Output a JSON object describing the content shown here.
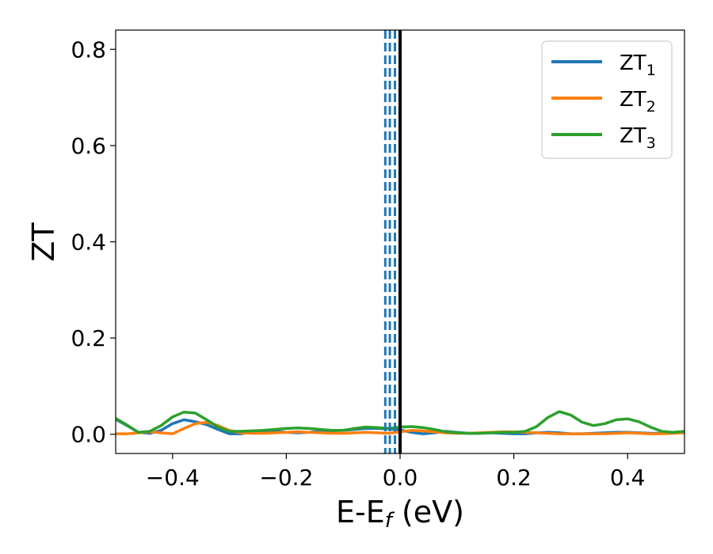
{
  "chart_data": {
    "type": "line",
    "title": "",
    "xlabel": "E-E",
    "xlabel_sub": "f",
    "xlabel_unit": " (eV)",
    "ylabel": "ZT",
    "xlim": [
      -0.5,
      0.5
    ],
    "ylim": [
      -0.04,
      0.84
    ],
    "xticks": [
      -0.4,
      -0.2,
      0.0,
      0.2,
      0.4
    ],
    "xtick_labels": [
      "−0.4",
      "−0.2",
      "0.0",
      "0.2",
      "0.4"
    ],
    "yticks": [
      0.0,
      0.2,
      0.4,
      0.6,
      0.8
    ],
    "ytick_labels": [
      "0.0",
      "0.2",
      "0.4",
      "0.6",
      "0.8"
    ],
    "grid": false,
    "legend_position": "top-right",
    "series": [
      {
        "name": "ZT",
        "name_sub": "1",
        "color": "#1f77b4",
        "x": [
          -0.5,
          -0.48,
          -0.46,
          -0.44,
          -0.42,
          -0.4,
          -0.38,
          -0.36,
          -0.34,
          -0.32,
          -0.3,
          -0.28,
          -0.26,
          -0.24,
          -0.22,
          -0.2,
          -0.18,
          -0.16,
          -0.14,
          -0.12,
          -0.1,
          -0.08,
          -0.06,
          -0.04,
          -0.02,
          0.0,
          0.02,
          0.04,
          0.06,
          0.08,
          0.1,
          0.12,
          0.14,
          0.16,
          0.18,
          0.2,
          0.22,
          0.24,
          0.26,
          0.28,
          0.3,
          0.32,
          0.34,
          0.36,
          0.38,
          0.4,
          0.42,
          0.44,
          0.46,
          0.48,
          0.5
        ],
        "y": [
          0.031,
          0.018,
          0.004,
          0.002,
          0.008,
          0.022,
          0.03,
          0.026,
          0.02,
          0.01,
          0.001,
          0.001,
          0.005,
          0.006,
          0.006,
          0.004,
          0.003,
          0.004,
          0.006,
          0.007,
          0.008,
          0.01,
          0.012,
          0.012,
          0.011,
          0.009,
          0.004,
          0.001,
          0.003,
          0.006,
          0.004,
          0.002,
          0.002,
          0.003,
          0.002,
          0.001,
          0.001,
          0.003,
          0.004,
          0.003,
          0.001,
          0.001,
          0.002,
          0.003,
          0.004,
          0.004,
          0.003,
          0.002,
          0.002,
          0.003,
          0.003
        ]
      },
      {
        "name": "ZT",
        "name_sub": "2",
        "color": "#ff7f0e",
        "x": [
          -0.5,
          -0.48,
          -0.46,
          -0.44,
          -0.42,
          -0.4,
          -0.38,
          -0.36,
          -0.34,
          -0.32,
          -0.3,
          -0.28,
          -0.26,
          -0.24,
          -0.22,
          -0.2,
          -0.18,
          -0.16,
          -0.14,
          -0.12,
          -0.1,
          -0.08,
          -0.06,
          -0.04,
          -0.02,
          0.0,
          0.02,
          0.04,
          0.06,
          0.08,
          0.1,
          0.12,
          0.14,
          0.16,
          0.18,
          0.2,
          0.22,
          0.24,
          0.26,
          0.28,
          0.3,
          0.32,
          0.34,
          0.36,
          0.38,
          0.4,
          0.42,
          0.44,
          0.46,
          0.48,
          0.5
        ],
        "y": [
          0.001,
          0.001,
          0.003,
          0.005,
          0.003,
          0.001,
          0.012,
          0.022,
          0.025,
          0.018,
          0.008,
          0.003,
          0.002,
          0.002,
          0.003,
          0.004,
          0.005,
          0.004,
          0.003,
          0.002,
          0.002,
          0.003,
          0.004,
          0.003,
          0.002,
          0.005,
          0.008,
          0.007,
          0.005,
          0.003,
          0.002,
          0.002,
          0.003,
          0.004,
          0.005,
          0.005,
          0.004,
          0.003,
          0.002,
          0.001,
          0.001,
          0.001,
          0.001,
          0.001,
          0.002,
          0.003,
          0.002,
          0.001,
          0.001,
          0.002,
          0.003
        ]
      },
      {
        "name": "ZT",
        "name_sub": "3",
        "color": "#2ca02c",
        "x": [
          -0.5,
          -0.48,
          -0.46,
          -0.44,
          -0.42,
          -0.4,
          -0.38,
          -0.36,
          -0.34,
          -0.32,
          -0.3,
          -0.28,
          -0.26,
          -0.24,
          -0.22,
          -0.2,
          -0.18,
          -0.16,
          -0.14,
          -0.12,
          -0.1,
          -0.08,
          -0.06,
          -0.04,
          -0.02,
          0.0,
          0.02,
          0.04,
          0.06,
          0.08,
          0.1,
          0.12,
          0.14,
          0.16,
          0.18,
          0.2,
          0.22,
          0.24,
          0.26,
          0.28,
          0.3,
          0.32,
          0.34,
          0.36,
          0.38,
          0.4,
          0.42,
          0.44,
          0.46,
          0.48,
          0.5
        ],
        "y": [
          0.033,
          0.019,
          0.004,
          0.006,
          0.018,
          0.036,
          0.046,
          0.044,
          0.03,
          0.015,
          0.006,
          0.006,
          0.007,
          0.008,
          0.01,
          0.012,
          0.013,
          0.012,
          0.01,
          0.008,
          0.008,
          0.012,
          0.015,
          0.014,
          0.012,
          0.015,
          0.016,
          0.014,
          0.01,
          0.005,
          0.003,
          0.002,
          0.002,
          0.003,
          0.004,
          0.004,
          0.006,
          0.016,
          0.035,
          0.047,
          0.04,
          0.025,
          0.018,
          0.022,
          0.03,
          0.032,
          0.026,
          0.015,
          0.006,
          0.004,
          0.006
        ]
      }
    ],
    "vlines": [
      {
        "x": -0.026,
        "color": "#1f77b4",
        "style": "dashed"
      },
      {
        "x": -0.018,
        "color": "#1f77b4",
        "style": "dashed"
      },
      {
        "x": -0.009,
        "color": "#1f77b4",
        "style": "dashed"
      },
      {
        "x": 0.0,
        "color": "#000000",
        "style": "solid"
      }
    ]
  }
}
